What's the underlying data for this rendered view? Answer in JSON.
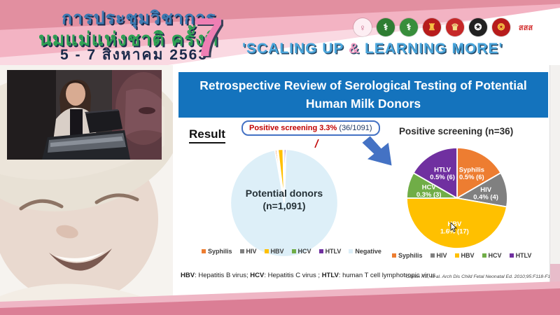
{
  "banner": {
    "title_line1": "การประชุมวิชาการ",
    "title_line2": "นมแม่แห่งชาติ ครั้งที่",
    "date_line": "5 - 7 สิงหาคม 2563",
    "edition_number": "7",
    "slogan_part1": "'SCALING UP ",
    "slogan_amp": "&",
    "slogan_part2": " LEARNING MORE'",
    "logos": [
      {
        "label": "",
        "glyph": "♀",
        "bg": "#fdeef3",
        "fg": "#c2597e"
      },
      {
        "label": "",
        "glyph": "⚕",
        "bg": "#2e7d32",
        "fg": "#ffffff"
      },
      {
        "label": "",
        "glyph": "⚕",
        "bg": "#388e3c",
        "fg": "#ffffff"
      },
      {
        "label": "",
        "glyph": "♜",
        "bg": "#b71c1c",
        "fg": "#f6c244"
      },
      {
        "label": "",
        "glyph": "♛",
        "bg": "#c62828",
        "fg": "#f3e28a"
      },
      {
        "label": "",
        "glyph": "✪",
        "bg": "#212121",
        "fg": "#ffffff"
      },
      {
        "label": "",
        "glyph": "❂",
        "bg": "#b71c1c",
        "fg": "#f6c244"
      },
      {
        "label": "สสส",
        "glyph": "",
        "bg": "#ffffff",
        "fg": "#d32f2f"
      }
    ]
  },
  "slide": {
    "title": "Retrospective Review of Serological Testing of Potential Human Milk Donors",
    "result_label": "Result",
    "callout": {
      "highlight": "Positive screening 3.3%",
      "detail": " (36/1091)"
    },
    "footnote": {
      "hbv_label": "HBV",
      "hbv_text": ": Hepatitis B virus; ",
      "hcv_label": "HCV",
      "hcv_text": ": Hepatitis C virus ; ",
      "htlv_label": "HTLV",
      "htlv_text": ": human T cell lymphotropic virus"
    },
    "citation": "Cohen RS, et al. Arch Dis Child Fetal Neonatal Ed. 2010;95:F118-F120."
  },
  "chart_data": [
    {
      "type": "pie",
      "name": "potential-donors-pie",
      "title": "",
      "center_label": [
        "Potential donors",
        "(n=1,091)"
      ],
      "categories": [
        "Syphilis",
        "HIV",
        "HBV",
        "HCV",
        "HTLV",
        "Negative"
      ],
      "values": [
        6,
        4,
        17,
        3,
        6,
        1055
      ],
      "colors": [
        "#ed7d31",
        "#808080",
        "#ffc000",
        "#70ad47",
        "#7030a0",
        "#ddeff8"
      ],
      "total": 1091,
      "start_angle": -100,
      "legend_position": "bottom",
      "annotation": "Positive screening 3.3% (36/1091)"
    },
    {
      "type": "pie",
      "name": "positive-screening-pie",
      "title": "Positive screening (n=36)",
      "categories": [
        "Syphilis",
        "HIV",
        "HBV",
        "HCV",
        "HTLV"
      ],
      "values": [
        6,
        4,
        17,
        3,
        6
      ],
      "labels": [
        [
          "Syphilis",
          "0.5% (6)"
        ],
        [
          "HIV",
          "0.4% (4)"
        ],
        [
          "HBV",
          "1.6% (17)"
        ],
        [
          "HCV",
          "0.3% (3)"
        ],
        [
          "HTLV",
          "0.5% (6)"
        ]
      ],
      "colors": [
        "#ed7d31",
        "#808080",
        "#ffc000",
        "#70ad47",
        "#7030a0"
      ],
      "total": 36,
      "start_angle": -90,
      "legend_position": "bottom"
    }
  ]
}
